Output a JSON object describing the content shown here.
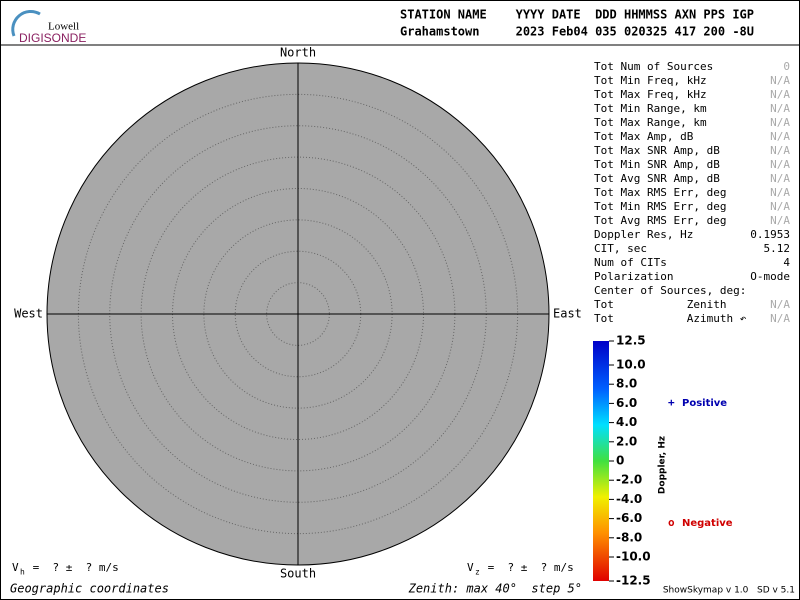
{
  "header": {
    "logo": {
      "top": "Lowell",
      "bottom": "DIGISONDE"
    },
    "line1": "STATION NAME    YYYY DATE  DDD HHMMSS AXN PPS IGP",
    "line2": "Grahamstown     2023 Feb04 035 020325 417 200 -8U"
  },
  "skymap": {
    "north": "North",
    "south": "South",
    "east": "East",
    "west": "West"
  },
  "stats": [
    {
      "label": "Tot Num of Sources",
      "value": "0"
    },
    {
      "label": "Tot Min Freq, kHz",
      "value": "N/A"
    },
    {
      "label": "Tot Max Freq, kHz",
      "value": "N/A"
    },
    {
      "label": "Tot Min Range, km",
      "value": "N/A"
    },
    {
      "label": "Tot Max Range, km",
      "value": "N/A"
    },
    {
      "label": "Tot Max Amp, dB",
      "value": "N/A"
    },
    {
      "label": "Tot Max SNR Amp, dB",
      "value": "N/A"
    },
    {
      "label": "Tot Min SNR Amp, dB",
      "value": "N/A"
    },
    {
      "label": "Tot Avg SNR Amp, dB",
      "value": "N/A"
    },
    {
      "label": "Tot Max RMS Err, deg",
      "value": "N/A"
    },
    {
      "label": "Tot Min RMS Err, deg",
      "value": "N/A"
    },
    {
      "label": "Tot Avg RMS Err, deg",
      "value": "N/A"
    },
    {
      "label": "Doppler Res, Hz",
      "value": "0.1953"
    },
    {
      "label": "CIT, sec",
      "value": "5.12"
    },
    {
      "label": "Num of CITs",
      "value": "4"
    },
    {
      "label": "Polarization",
      "value": "O-mode"
    },
    {
      "label": "Center of Sources, deg:"
    },
    {
      "label": "Tot           Zenith",
      "value": "N/A"
    },
    {
      "label": "Tot           Azimuth ↶",
      "value": "N/A"
    }
  ],
  "colorbar": {
    "title": "Doppler, Hz",
    "min": -12.5,
    "max": 12.5,
    "ticks": [
      {
        "value": 12.5,
        "label": "12.5"
      },
      {
        "value": 10,
        "label": "10.0"
      },
      {
        "value": 8,
        "label": "8.0"
      },
      {
        "value": 6,
        "label": "6.0"
      },
      {
        "value": 4,
        "label": "4.0"
      },
      {
        "value": 2,
        "label": "2.0"
      },
      0,
      {
        "value": -2,
        "label": "-2.0"
      },
      {
        "value": -4,
        "label": "-4.0"
      },
      {
        "value": -6,
        "label": "-6.0"
      },
      {
        "value": -8,
        "label": "-8.0"
      },
      {
        "value": -10,
        "label": "-10.0"
      },
      {
        "value": -12.5,
        "label": "-12.5"
      }
    ]
  },
  "legend": {
    "positive": {
      "symbol": "+",
      "text": "Positive"
    },
    "negative": {
      "symbol": "o",
      "text": "Negative"
    }
  },
  "velocity": {
    "vh": {
      "symbol": "V",
      "sub": "h",
      "text": " =  ? ±  ? m/s"
    },
    "vz": {
      "symbol": "V",
      "sub": "z",
      "text": " =  ? ±  ? m/s"
    }
  },
  "footer": {
    "coords": "Geographic coordinates",
    "zenith": "Zenith: max 40°  step 5°",
    "version": "ShowSkymap v 1.0   SD v 5.1"
  }
}
